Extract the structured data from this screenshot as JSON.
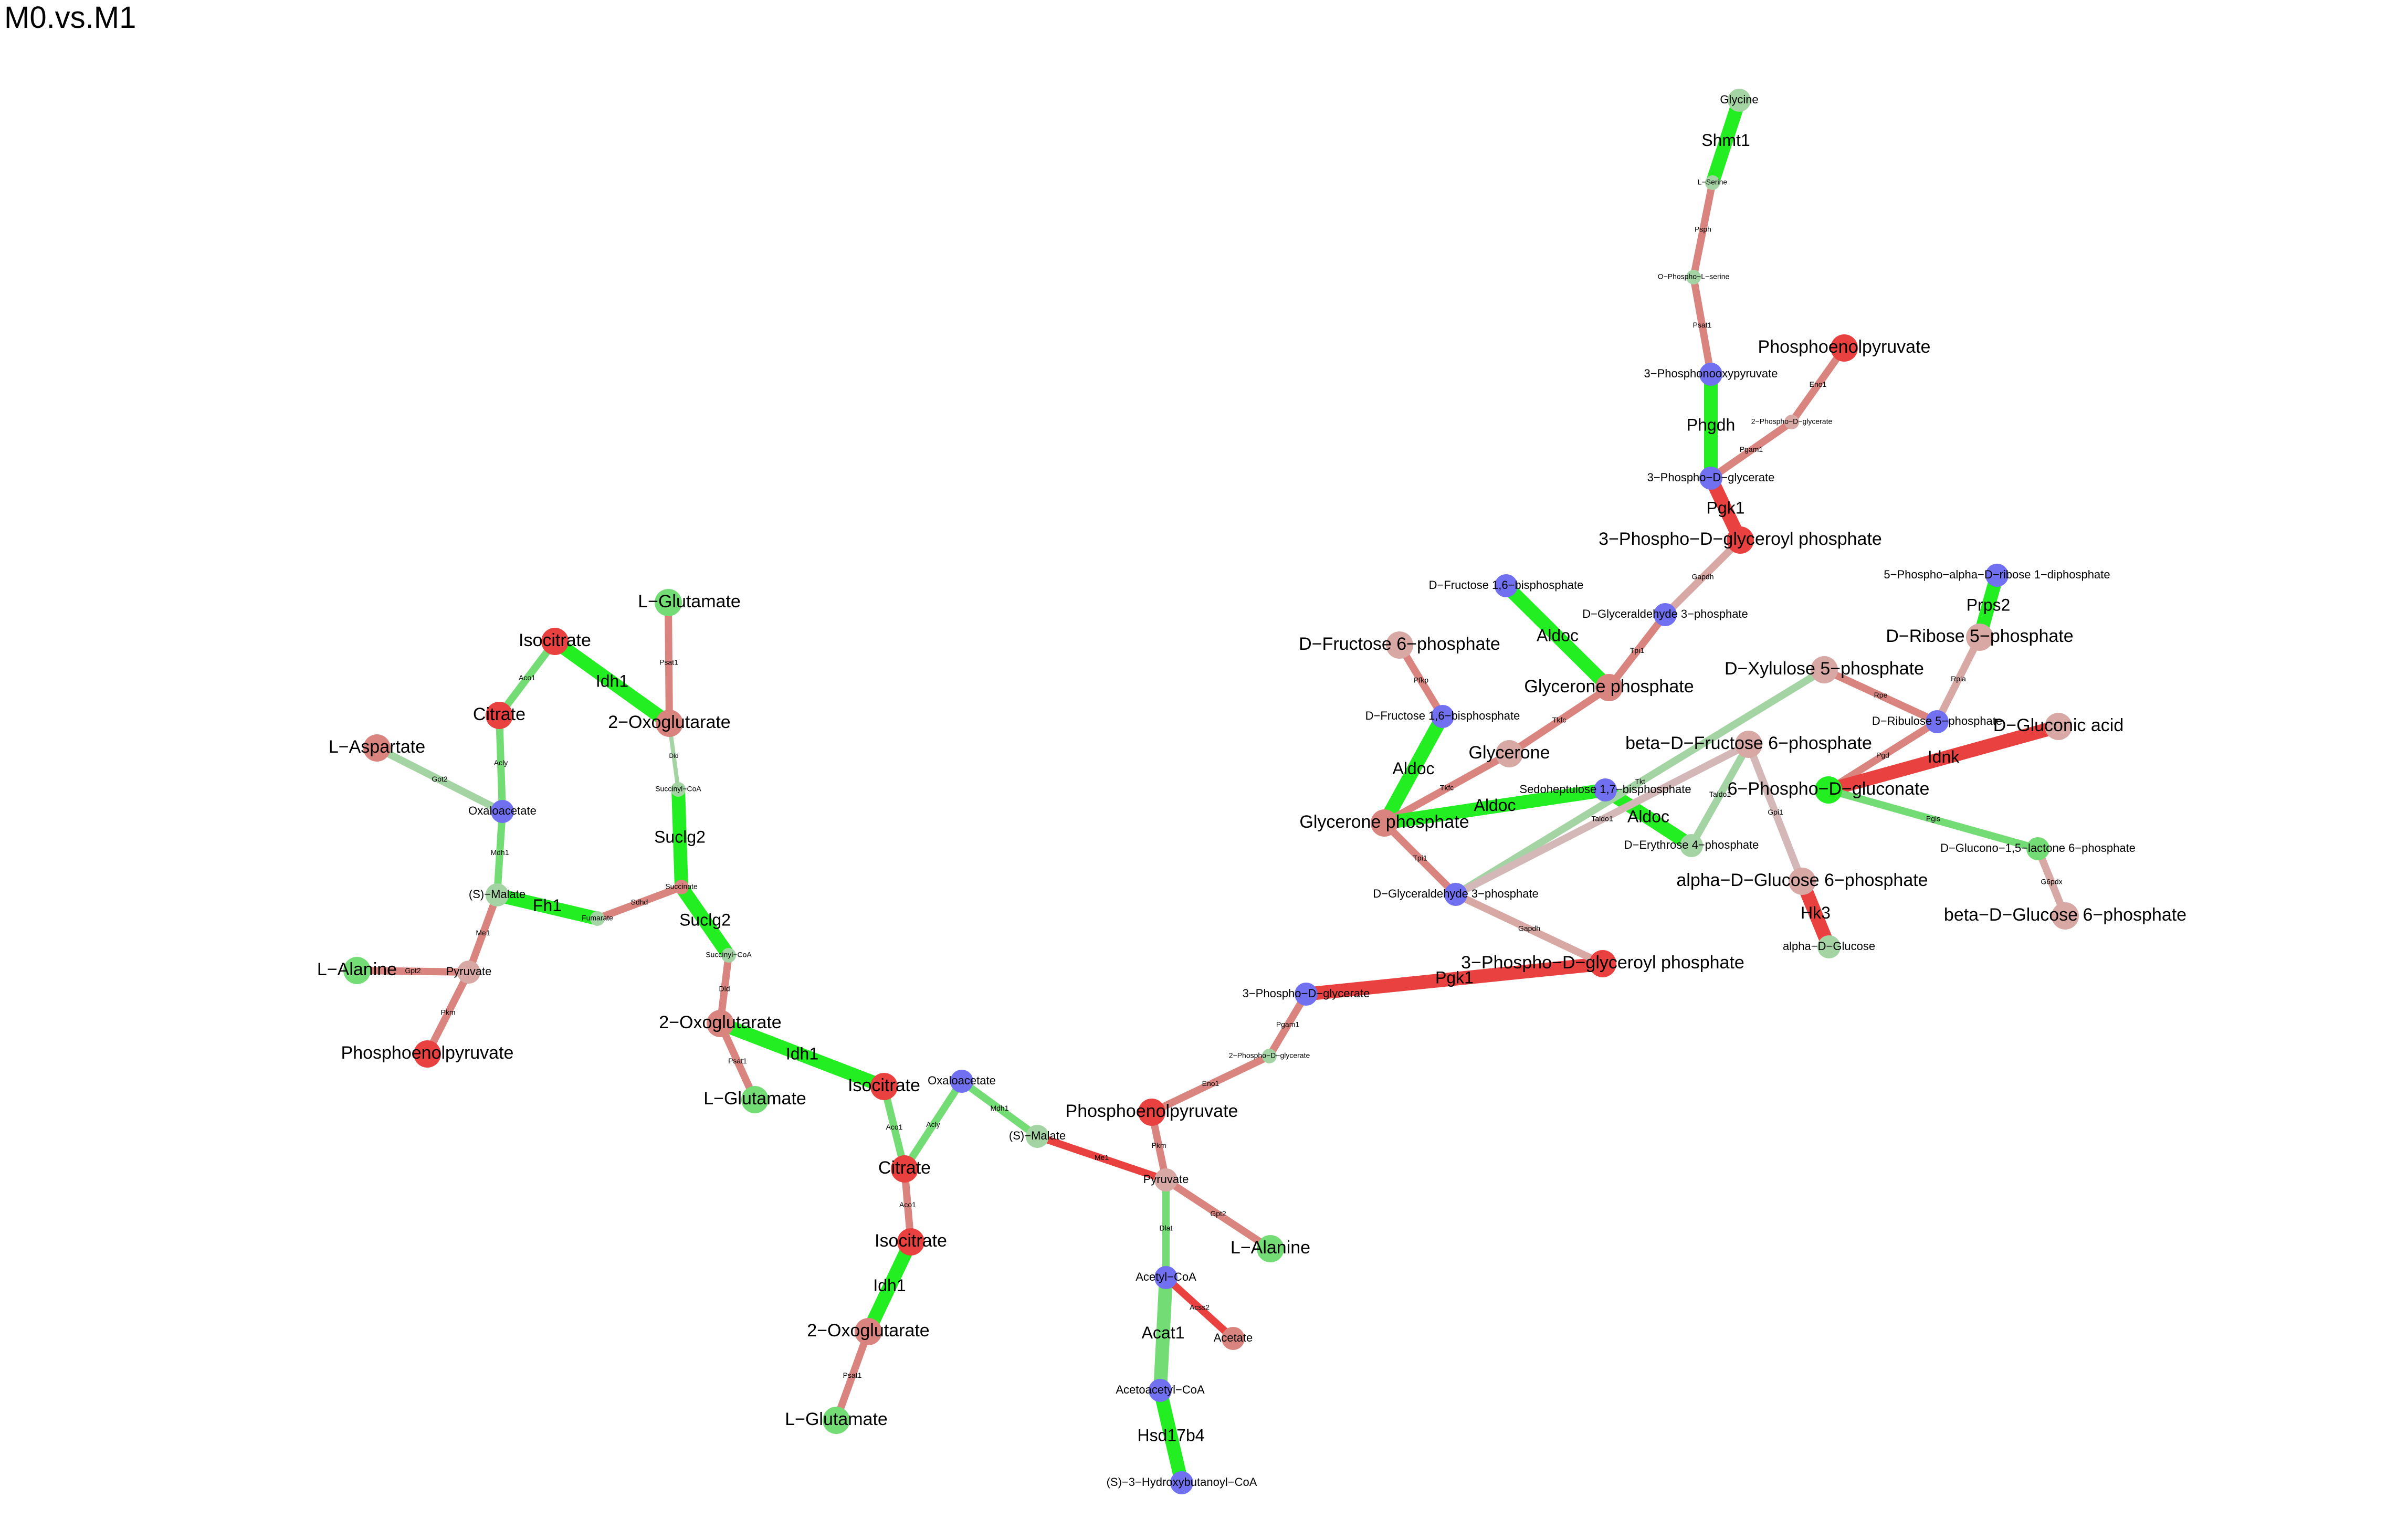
{
  "title": "M0.vs.M1",
  "colors": {
    "red": "#e8413f",
    "light_red": "#d9847f",
    "pale_red": "#d8a8a5",
    "green": "#22ee22",
    "light_green": "#74dc74",
    "pale_green": "#a4d4a4",
    "blue": "#7070f0",
    "gray": "#d4b8b8"
  },
  "nodes": [
    {
      "id": "n1",
      "label": "Isocitrate",
      "color": "red",
      "size": "large"
    },
    {
      "id": "n2",
      "label": "L−Glutamate",
      "color": "light_green",
      "size": "large"
    },
    {
      "id": "n3",
      "label": "Citrate",
      "color": "red",
      "size": "large"
    },
    {
      "id": "n4",
      "label": "2−Oxoglutarate",
      "color": "light_red",
      "size": "large"
    },
    {
      "id": "n5",
      "label": "L−Aspartate",
      "color": "light_red",
      "size": "large"
    },
    {
      "id": "n6",
      "label": "Oxaloacetate",
      "color": "blue",
      "size": "small"
    },
    {
      "id": "n7",
      "label": "Succinyl−CoA",
      "color": "pale_green",
      "size": "tiny"
    },
    {
      "id": "n8",
      "label": "(S)−Malate",
      "color": "pale_green",
      "size": "small"
    },
    {
      "id": "n9",
      "label": "Fumarate",
      "color": "pale_green",
      "size": "tiny"
    },
    {
      "id": "n10",
      "label": "Succinate",
      "color": "light_red",
      "size": "tiny"
    },
    {
      "id": "n11",
      "label": "L−Alanine",
      "color": "light_green",
      "size": "large"
    },
    {
      "id": "n12",
      "label": "Pyruvate",
      "color": "pale_red",
      "size": "small"
    },
    {
      "id": "n13",
      "label": "Phosphoenolpyruvate",
      "color": "red",
      "size": "large"
    },
    {
      "id": "n14",
      "label": "Succinyl−CoA",
      "color": "pale_green",
      "size": "tiny"
    },
    {
      "id": "n15",
      "label": "2−Oxoglutarate",
      "color": "light_red",
      "size": "large"
    },
    {
      "id": "n16",
      "label": "L−Glutamate",
      "color": "light_green",
      "size": "large"
    },
    {
      "id": "n17",
      "label": "Isocitrate",
      "color": "red",
      "size": "large"
    },
    {
      "id": "n18",
      "label": "Oxaloacetate",
      "color": "blue",
      "size": "small"
    },
    {
      "id": "n19",
      "label": "Citrate",
      "color": "red",
      "size": "large"
    },
    {
      "id": "n20",
      "label": "(S)−Malate",
      "color": "pale_green",
      "size": "small"
    },
    {
      "id": "n21",
      "label": "Isocitrate",
      "color": "red",
      "size": "large"
    },
    {
      "id": "n22",
      "label": "2−Oxoglutarate",
      "color": "light_red",
      "size": "large"
    },
    {
      "id": "n23",
      "label": "L−Glutamate",
      "color": "light_green",
      "size": "large"
    },
    {
      "id": "n24",
      "label": "Phosphoenolpyruvate",
      "color": "red",
      "size": "large"
    },
    {
      "id": "n25",
      "label": "Pyruvate",
      "color": "pale_red",
      "size": "small"
    },
    {
      "id": "n26",
      "label": "L−Alanine",
      "color": "light_green",
      "size": "large"
    },
    {
      "id": "n27",
      "label": "Acetyl−CoA",
      "color": "blue",
      "size": "small"
    },
    {
      "id": "n28",
      "label": "Acetate",
      "color": "light_red",
      "size": "small"
    },
    {
      "id": "n29",
      "label": "Acetoacetyl−CoA",
      "color": "blue",
      "size": "small"
    },
    {
      "id": "n30",
      "label": "(S)−3−Hydroxybutanoyl−CoA",
      "color": "blue",
      "size": "small"
    },
    {
      "id": "n31",
      "label": "2−Phospho−D−glycerate",
      "color": "pale_green",
      "size": "tiny"
    },
    {
      "id": "n32",
      "label": "3−Phospho−D−glycerate",
      "color": "blue",
      "size": "small"
    },
    {
      "id": "n33",
      "label": "3−Phospho−D−glyceroyl phosphate",
      "color": "red",
      "size": "large"
    },
    {
      "id": "n34",
      "label": "D−Glyceraldehyde 3−phosphate",
      "color": "blue",
      "size": "small"
    },
    {
      "id": "n35",
      "label": "Glycerone phosphate",
      "color": "light_red",
      "size": "large"
    },
    {
      "id": "n36",
      "label": "D−Fructose 1,6−bisphosphate",
      "color": "blue",
      "size": "small"
    },
    {
      "id": "n37",
      "label": "D−Fructose 6−phosphate",
      "color": "pale_red",
      "size": "large"
    },
    {
      "id": "n38",
      "label": "Glycerone",
      "color": "pale_red",
      "size": "large"
    },
    {
      "id": "n39",
      "label": "Glycerone phosphate",
      "color": "light_red",
      "size": "large"
    },
    {
      "id": "n40",
      "label": "D−Fructose 1,6−bisphosphate",
      "color": "blue",
      "size": "small"
    },
    {
      "id": "n41",
      "label": "D−Glyceraldehyde 3−phosphate",
      "color": "blue",
      "size": "small"
    },
    {
      "id": "n42",
      "label": "Sedoheptulose 1,7−bisphosphate",
      "color": "blue",
      "size": "small"
    },
    {
      "id": "n43",
      "label": "D−Erythrose 4−phosphate",
      "color": "pale_green",
      "size": "small"
    },
    {
      "id": "n44",
      "label": "beta−D−Fructose 6−phosphate",
      "color": "pale_red",
      "size": "large"
    },
    {
      "id": "n45",
      "label": "D−Xylulose 5−phosphate",
      "color": "pale_red",
      "size": "large"
    },
    {
      "id": "n46",
      "label": "alpha−D−Glucose 6−phosphate",
      "color": "pale_red",
      "size": "large"
    },
    {
      "id": "n47",
      "label": "alpha−D−Glucose",
      "color": "pale_green",
      "size": "small"
    },
    {
      "id": "n48",
      "label": "6−Phospho−D−gluconate",
      "color": "green",
      "size": "large"
    },
    {
      "id": "n49",
      "label": "D−Ribulose 5−phosphate",
      "color": "blue",
      "size": "small"
    },
    {
      "id": "n50",
      "label": "D−Ribose 5−phosphate",
      "color": "pale_red",
      "size": "large"
    },
    {
      "id": "n51",
      "label": "5−Phospho−alpha−D−ribose 1−diphosphate",
      "color": "blue",
      "size": "small"
    },
    {
      "id": "n52",
      "label": "D−Gluconic acid",
      "color": "pale_red",
      "size": "large"
    },
    {
      "id": "n53",
      "label": "D−Glucono−1,5−lactone 6−phosphate",
      "color": "light_green",
      "size": "small"
    },
    {
      "id": "n54",
      "label": "beta−D−Glucose 6−phosphate",
      "color": "pale_red",
      "size": "large"
    },
    {
      "id": "n55",
      "label": "3−Phospho−D−glyceroyl phosphate",
      "color": "red",
      "size": "large"
    },
    {
      "id": "n56",
      "label": "3−Phospho−D−glycerate",
      "color": "blue",
      "size": "small"
    },
    {
      "id": "n57",
      "label": "Phosphoenolpyruvate",
      "color": "red",
      "size": "large"
    },
    {
      "id": "n58",
      "label": "2−Phospho−D−glycerate",
      "color": "pale_red",
      "size": "tiny"
    },
    {
      "id": "n59",
      "label": "3−Phosphonooxypyruvate",
      "color": "blue",
      "size": "small"
    },
    {
      "id": "n60",
      "label": "O−Phospho−L−serine",
      "color": "pale_green",
      "size": "tiny"
    },
    {
      "id": "n61",
      "label": "L−Serine",
      "color": "pale_green",
      "size": "tiny"
    },
    {
      "id": "n62",
      "label": "Glycine",
      "color": "pale_green",
      "size": "small"
    }
  ],
  "edges": [
    {
      "from": "n1",
      "to": "n4",
      "label": "Idh1",
      "color": "green",
      "weight": "thick"
    },
    {
      "from": "n1",
      "to": "n3",
      "label": "Aco1",
      "color": "light_green",
      "weight": "mid"
    },
    {
      "from": "n2",
      "to": "n4",
      "label": "Psat1",
      "color": "light_red",
      "weight": "mid"
    },
    {
      "from": "n3",
      "to": "n6",
      "label": "Acly",
      "color": "light_green",
      "weight": "mid"
    },
    {
      "from": "n5",
      "to": "n6",
      "label": "Got2",
      "color": "pale_green",
      "weight": "mid"
    },
    {
      "from": "n6",
      "to": "n8",
      "label": "Mdh1",
      "color": "light_green",
      "weight": "mid"
    },
    {
      "from": "n4",
      "to": "n7",
      "label": "Dld",
      "color": "pale_green",
      "weight": "thin"
    },
    {
      "from": "n7",
      "to": "n10",
      "label": "Suclg2",
      "color": "green",
      "weight": "thick"
    },
    {
      "from": "n8",
      "to": "n9",
      "label": "Fh1",
      "color": "green",
      "weight": "thick"
    },
    {
      "from": "n9",
      "to": "n10",
      "label": "Sdhd",
      "color": "light_red",
      "weight": "mid"
    },
    {
      "from": "n8",
      "to": "n12",
      "label": "Me1",
      "color": "light_red",
      "weight": "mid"
    },
    {
      "from": "n11",
      "to": "n12",
      "label": "Gpt2",
      "color": "light_red",
      "weight": "mid"
    },
    {
      "from": "n12",
      "to": "n13",
      "label": "Pkm",
      "color": "light_red",
      "weight": "mid"
    },
    {
      "from": "n10",
      "to": "n14",
      "label": "Suclg2",
      "color": "green",
      "weight": "thick"
    },
    {
      "from": "n14",
      "to": "n15",
      "label": "Dld",
      "color": "light_red",
      "weight": "mid"
    },
    {
      "from": "n15",
      "to": "n16",
      "label": "Psat1",
      "color": "light_red",
      "weight": "mid"
    },
    {
      "from": "n15",
      "to": "n17",
      "label": "Idh1",
      "color": "green",
      "weight": "thick"
    },
    {
      "from": "n17",
      "to": "n19",
      "label": "Aco1",
      "color": "light_green",
      "weight": "mid"
    },
    {
      "from": "n18",
      "to": "n19",
      "label": "Acly",
      "color": "light_green",
      "weight": "mid"
    },
    {
      "from": "n18",
      "to": "n20",
      "label": "Mdh1",
      "color": "light_green",
      "weight": "mid"
    },
    {
      "from": "n19",
      "to": "n21",
      "label": "Aco1",
      "color": "light_red",
      "weight": "mid"
    },
    {
      "from": "n21",
      "to": "n22",
      "label": "Idh1",
      "color": "green",
      "weight": "thick"
    },
    {
      "from": "n22",
      "to": "n23",
      "label": "Psat1",
      "color": "light_red",
      "weight": "mid"
    },
    {
      "from": "n20",
      "to": "n25",
      "label": "Me1",
      "color": "red",
      "weight": "mid"
    },
    {
      "from": "n24",
      "to": "n25",
      "label": "Pkm",
      "color": "light_red",
      "weight": "mid"
    },
    {
      "from": "n25",
      "to": "n26",
      "label": "Gpt2",
      "color": "light_red",
      "weight": "mid"
    },
    {
      "from": "n25",
      "to": "n27",
      "label": "Dlat",
      "color": "light_green",
      "weight": "mid"
    },
    {
      "from": "n27",
      "to": "n28",
      "label": "Acss2",
      "color": "red",
      "weight": "mid"
    },
    {
      "from": "n27",
      "to": "n29",
      "label": "Acat1",
      "color": "light_green",
      "weight": "thick"
    },
    {
      "from": "n29",
      "to": "n30",
      "label": "Hsd17b4",
      "color": "green",
      "weight": "thick"
    },
    {
      "from": "n24",
      "to": "n31",
      "label": "Eno1",
      "color": "light_red",
      "weight": "mid"
    },
    {
      "from": "n31",
      "to": "n32",
      "label": "Pgam1",
      "color": "light_red",
      "weight": "mid"
    },
    {
      "from": "n32",
      "to": "n33",
      "label": "Pgk1",
      "color": "red",
      "weight": "thick"
    },
    {
      "from": "n33",
      "to": "n34",
      "label": "Gapdh",
      "color": "pale_red",
      "weight": "mid"
    },
    {
      "from": "n34",
      "to": "n35",
      "label": "Tpi1",
      "color": "light_red",
      "weight": "mid"
    },
    {
      "from": "n35",
      "to": "n36",
      "label": "Aldoc",
      "color": "green",
      "weight": "thick"
    },
    {
      "from": "n36",
      "to": "n37",
      "label": "Pfkp",
      "color": "light_red",
      "weight": "mid"
    },
    {
      "from": "n35",
      "to": "n38",
      "label": "Tkfc",
      "color": "light_red",
      "weight": "mid"
    },
    {
      "from": "n38",
      "to": "n39",
      "label": "Tkfc",
      "color": "light_red",
      "weight": "mid"
    },
    {
      "from": "n39",
      "to": "n40",
      "label": "Aldoc",
      "color": "green",
      "weight": "thick"
    },
    {
      "from": "n39",
      "to": "n41",
      "label": "Tpi1",
      "color": "light_red",
      "weight": "mid"
    },
    {
      "from": "n41",
      "to": "n55",
      "label": "Gapdh",
      "color": "pale_red",
      "weight": "mid"
    },
    {
      "from": "n55",
      "to": "n56",
      "label": "Pgk1",
      "color": "red",
      "weight": "thick"
    },
    {
      "from": "n56",
      "to": "n58",
      "label": "Pgam1",
      "color": "light_red",
      "weight": "mid"
    },
    {
      "from": "n58",
      "to": "n57",
      "label": "Eno1",
      "color": "light_red",
      "weight": "mid"
    },
    {
      "from": "n56",
      "to": "n59",
      "label": "Phgdh",
      "color": "green",
      "weight": "thick"
    },
    {
      "from": "n59",
      "to": "n60",
      "label": "Psat1",
      "color": "light_red",
      "weight": "mid"
    },
    {
      "from": "n60",
      "to": "n61",
      "label": "Psph",
      "color": "light_red",
      "weight": "mid"
    },
    {
      "from": "n61",
      "to": "n62",
      "label": "Shmt1",
      "color": "green",
      "weight": "thick"
    },
    {
      "from": "n35",
      "to": "n42",
      "label": "Aldoc",
      "color": "green",
      "weight": "thick"
    },
    {
      "from": "n42",
      "to": "n43",
      "label": "Aldoc",
      "color": "green",
      "weight": "thick"
    },
    {
      "from": "n43",
      "to": "n44",
      "label": "Taldo1",
      "color": "pale_green",
      "weight": "mid"
    },
    {
      "from": "n34",
      "to": "n45",
      "label": "Tkt",
      "color": "pale_green",
      "weight": "mid"
    },
    {
      "from": "n34",
      "to": "n44",
      "label": "Taldo1",
      "color": "gray",
      "weight": "mid"
    },
    {
      "from": "n44",
      "to": "n46",
      "label": "Gpi1",
      "color": "gray",
      "weight": "mid"
    },
    {
      "from": "n46",
      "to": "n47",
      "label": "Hk3",
      "color": "red",
      "weight": "thick"
    },
    {
      "from": "n45",
      "to": "n49",
      "label": "Rpe",
      "color": "light_red",
      "weight": "mid"
    },
    {
      "from": "n49",
      "to": "n50",
      "label": "Rpia",
      "color": "pale_red",
      "weight": "mid"
    },
    {
      "from": "n50",
      "to": "n51",
      "label": "Prps2",
      "color": "green",
      "weight": "thick"
    },
    {
      "from": "n49",
      "to": "n48",
      "label": "Pgd",
      "color": "light_red",
      "weight": "mid"
    },
    {
      "from": "n48",
      "to": "n52",
      "label": "Idnk",
      "color": "red",
      "weight": "thick"
    },
    {
      "from": "n48",
      "to": "n53",
      "label": "Pgls",
      "color": "light_green",
      "weight": "mid"
    },
    {
      "from": "n53",
      "to": "n54",
      "label": "G6pdx",
      "color": "pale_red",
      "weight": "mid"
    }
  ]
}
